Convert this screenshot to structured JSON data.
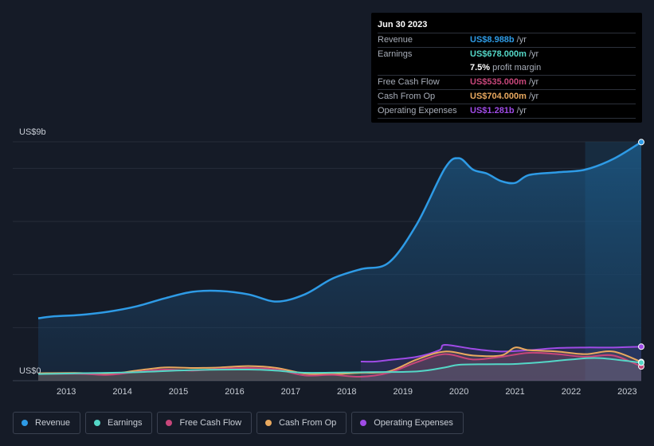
{
  "chart_data": {
    "type": "area",
    "title": "",
    "y_axis": {
      "top_label": "US$9b",
      "bottom_label": "US$0",
      "ylim": [
        0,
        9000
      ]
    },
    "x_ticks": [
      "2013",
      "2014",
      "2015",
      "2016",
      "2017",
      "2018",
      "2019",
      "2020",
      "2021",
      "2022",
      "2023"
    ],
    "xlim": [
      2012.75,
      2023.5
    ],
    "forecast_start": 2022.5,
    "series": [
      {
        "name": "Revenue",
        "color": "#2e9be6",
        "points": [
          [
            2012.75,
            2350
          ],
          [
            2013.0,
            2420
          ],
          [
            2013.5,
            2480
          ],
          [
            2014.0,
            2600
          ],
          [
            2014.5,
            2800
          ],
          [
            2015.0,
            3100
          ],
          [
            2015.5,
            3350
          ],
          [
            2016.0,
            3380
          ],
          [
            2016.5,
            3250
          ],
          [
            2017.0,
            2980
          ],
          [
            2017.5,
            3250
          ],
          [
            2018.0,
            3850
          ],
          [
            2018.5,
            4200
          ],
          [
            2019.0,
            4450
          ],
          [
            2019.5,
            5900
          ],
          [
            2020.0,
            8000
          ],
          [
            2020.25,
            8380
          ],
          [
            2020.5,
            7950
          ],
          [
            2020.75,
            7800
          ],
          [
            2021.0,
            7520
          ],
          [
            2021.25,
            7450
          ],
          [
            2021.5,
            7750
          ],
          [
            2022.0,
            7850
          ],
          [
            2022.5,
            7950
          ],
          [
            2023.0,
            8350
          ],
          [
            2023.5,
            8988
          ]
        ]
      },
      {
        "name": "Earnings",
        "color": "#54d7c7",
        "points": [
          [
            2012.75,
            250
          ],
          [
            2013.5,
            280
          ],
          [
            2014.5,
            320
          ],
          [
            2015.5,
            400
          ],
          [
            2016.5,
            420
          ],
          [
            2017.0,
            380
          ],
          [
            2017.5,
            300
          ],
          [
            2018.5,
            320
          ],
          [
            2019.5,
            350
          ],
          [
            2020.0,
            500
          ],
          [
            2020.25,
            600
          ],
          [
            2020.75,
            620
          ],
          [
            2021.25,
            630
          ],
          [
            2021.75,
            700
          ],
          [
            2022.25,
            800
          ],
          [
            2022.75,
            850
          ],
          [
            2023.5,
            678
          ]
        ]
      },
      {
        "name": "Free Cash Flow",
        "color": "#c7467a",
        "points": [
          [
            2012.75,
            250
          ],
          [
            2013.5,
            260
          ],
          [
            2014.0,
            220
          ],
          [
            2014.5,
            330
          ],
          [
            2015.0,
            420
          ],
          [
            2015.5,
            380
          ],
          [
            2016.0,
            450
          ],
          [
            2016.5,
            480
          ],
          [
            2017.0,
            420
          ],
          [
            2017.5,
            200
          ],
          [
            2018.0,
            220
          ],
          [
            2018.5,
            150
          ],
          [
            2019.0,
            300
          ],
          [
            2019.5,
            700
          ],
          [
            2020.0,
            1000
          ],
          [
            2020.5,
            800
          ],
          [
            2021.0,
            900
          ],
          [
            2021.5,
            1050
          ],
          [
            2022.0,
            1000
          ],
          [
            2022.5,
            900
          ],
          [
            2023.0,
            950
          ],
          [
            2023.5,
            535
          ]
        ]
      },
      {
        "name": "Cash From Op",
        "color": "#e9a95f",
        "points": [
          [
            2012.75,
            280
          ],
          [
            2013.5,
            290
          ],
          [
            2014.0,
            250
          ],
          [
            2014.5,
            380
          ],
          [
            2015.0,
            500
          ],
          [
            2015.5,
            480
          ],
          [
            2016.0,
            500
          ],
          [
            2016.5,
            550
          ],
          [
            2017.0,
            480
          ],
          [
            2017.5,
            270
          ],
          [
            2018.0,
            250
          ],
          [
            2018.5,
            300
          ],
          [
            2019.0,
            350
          ],
          [
            2019.5,
            800
          ],
          [
            2020.0,
            1100
          ],
          [
            2020.5,
            950
          ],
          [
            2021.0,
            950
          ],
          [
            2021.25,
            1250
          ],
          [
            2021.5,
            1150
          ],
          [
            2022.0,
            1100
          ],
          [
            2022.5,
            1000
          ],
          [
            2023.0,
            1100
          ],
          [
            2023.5,
            704
          ]
        ]
      },
      {
        "name": "Operating Expenses",
        "color": "#9f4be6",
        "points": [
          [
            2018.5,
            720
          ],
          [
            2018.75,
            720
          ],
          [
            2019.0,
            780
          ],
          [
            2019.5,
            900
          ],
          [
            2019.9,
            1150
          ],
          [
            2020.0,
            1350
          ],
          [
            2020.5,
            1200
          ],
          [
            2021.0,
            1100
          ],
          [
            2021.5,
            1150
          ],
          [
            2022.0,
            1230
          ],
          [
            2022.5,
            1250
          ],
          [
            2023.0,
            1250
          ],
          [
            2023.5,
            1281
          ]
        ]
      }
    ]
  },
  "tooltip": {
    "date": "Jun 30 2023",
    "rows": [
      {
        "label": "Revenue",
        "value": "US$8.988b",
        "unit": "/yr",
        "color": "#2e9be6"
      },
      {
        "label": "Earnings",
        "value": "US$678.000m",
        "unit": "/yr",
        "color": "#54d7c7"
      },
      {
        "label": "",
        "value": "7.5%",
        "unit": "profit margin",
        "color": "#ffffff"
      },
      {
        "label": "Free Cash Flow",
        "value": "US$535.000m",
        "unit": "/yr",
        "color": "#c7467a"
      },
      {
        "label": "Cash From Op",
        "value": "US$704.000m",
        "unit": "/yr",
        "color": "#e9a95f"
      },
      {
        "label": "Operating Expenses",
        "value": "US$1.281b",
        "unit": "/yr",
        "color": "#9f4be6"
      }
    ]
  },
  "legend": [
    {
      "label": "Revenue",
      "color": "#2e9be6"
    },
    {
      "label": "Earnings",
      "color": "#54d7c7"
    },
    {
      "label": "Free Cash Flow",
      "color": "#c7467a"
    },
    {
      "label": "Cash From Op",
      "color": "#e9a95f"
    },
    {
      "label": "Operating Expenses",
      "color": "#9f4be6"
    }
  ]
}
